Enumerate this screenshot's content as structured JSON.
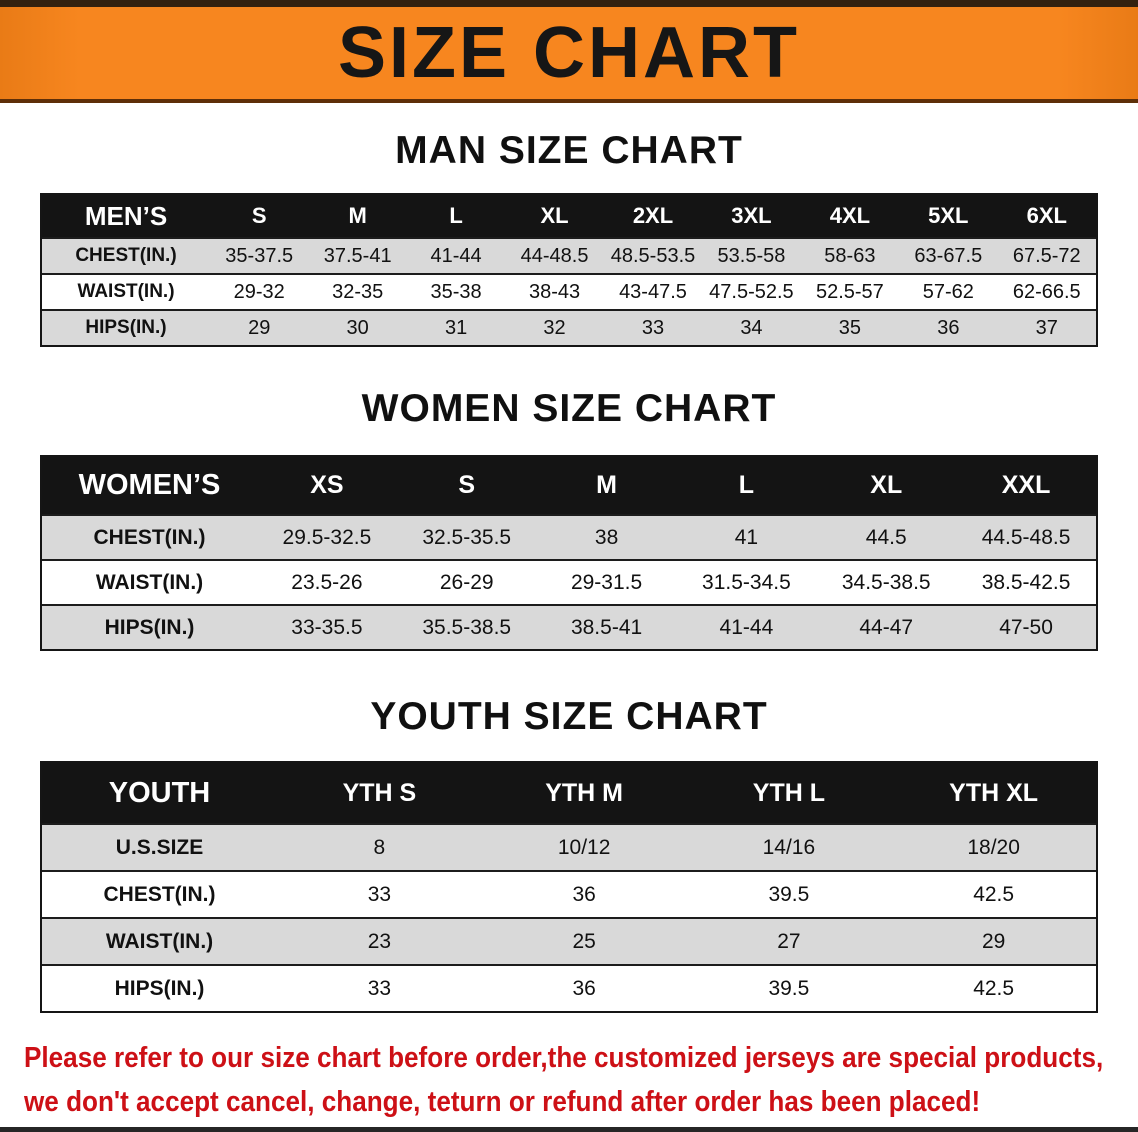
{
  "banner": {
    "title": "SIZE CHART"
  },
  "colors": {
    "banner_orange": "#f7861f",
    "top_strip_brown": "#33210f",
    "table_header_black": "#141414",
    "stripe_gray": "#d9d9d9",
    "footer_red": "#cd1016"
  },
  "men": {
    "heading": "MAN SIZE CHART",
    "header": [
      "MEN’S",
      "S",
      "M",
      "L",
      "XL",
      "2XL",
      "3XL",
      "4XL",
      "5XL",
      "6XL"
    ],
    "rows": [
      {
        "label": "CHEST(IN.)",
        "values": [
          "35-37.5",
          "37.5-41",
          "41-44",
          "44-48.5",
          "48.5-53.5",
          "53.5-58",
          "58-63",
          "63-67.5",
          "67.5-72"
        ]
      },
      {
        "label": "WAIST(IN.)",
        "values": [
          "29-32",
          "32-35",
          "35-38",
          "38-43",
          "43-47.5",
          "47.5-52.5",
          "52.5-57",
          "57-62",
          "62-66.5"
        ]
      },
      {
        "label": "HIPS(IN.)",
        "values": [
          "29",
          "30",
          "31",
          "32",
          "33",
          "34",
          "35",
          "36",
          "37"
        ]
      }
    ]
  },
  "women": {
    "heading": "WOMEN SIZE CHART",
    "header": [
      "WOMEN’S",
      "XS",
      "S",
      "M",
      "L",
      "XL",
      "XXL"
    ],
    "rows": [
      {
        "label": "CHEST(IN.)",
        "values": [
          "29.5-32.5",
          "32.5-35.5",
          "38",
          "41",
          "44.5",
          "44.5-48.5"
        ]
      },
      {
        "label": "WAIST(IN.)",
        "values": [
          "23.5-26",
          "26-29",
          "29-31.5",
          "31.5-34.5",
          "34.5-38.5",
          "38.5-42.5"
        ]
      },
      {
        "label": "HIPS(IN.)",
        "values": [
          "33-35.5",
          "35.5-38.5",
          "38.5-41",
          "41-44",
          "44-47",
          "47-50"
        ]
      }
    ]
  },
  "youth": {
    "heading": "YOUTH SIZE CHART",
    "header": [
      "YOUTH",
      "YTH S",
      "YTH M",
      "YTH L",
      "YTH XL"
    ],
    "rows": [
      {
        "label": "U.S.SIZE",
        "values": [
          "8",
          "10/12",
          "14/16",
          "18/20"
        ]
      },
      {
        "label": "CHEST(IN.)",
        "values": [
          "33",
          "36",
          "39.5",
          "42.5"
        ]
      },
      {
        "label": "WAIST(IN.)",
        "values": [
          "23",
          "25",
          "27",
          "29"
        ]
      },
      {
        "label": "HIPS(IN.)",
        "values": [
          "33",
          "36",
          "39.5",
          "42.5"
        ]
      }
    ]
  },
  "footer": {
    "line1": "Please refer to our size chart before order,the customized jerseys are special products,",
    "line2": "we don't accept cancel, change, teturn or refund after order has been placed!"
  }
}
